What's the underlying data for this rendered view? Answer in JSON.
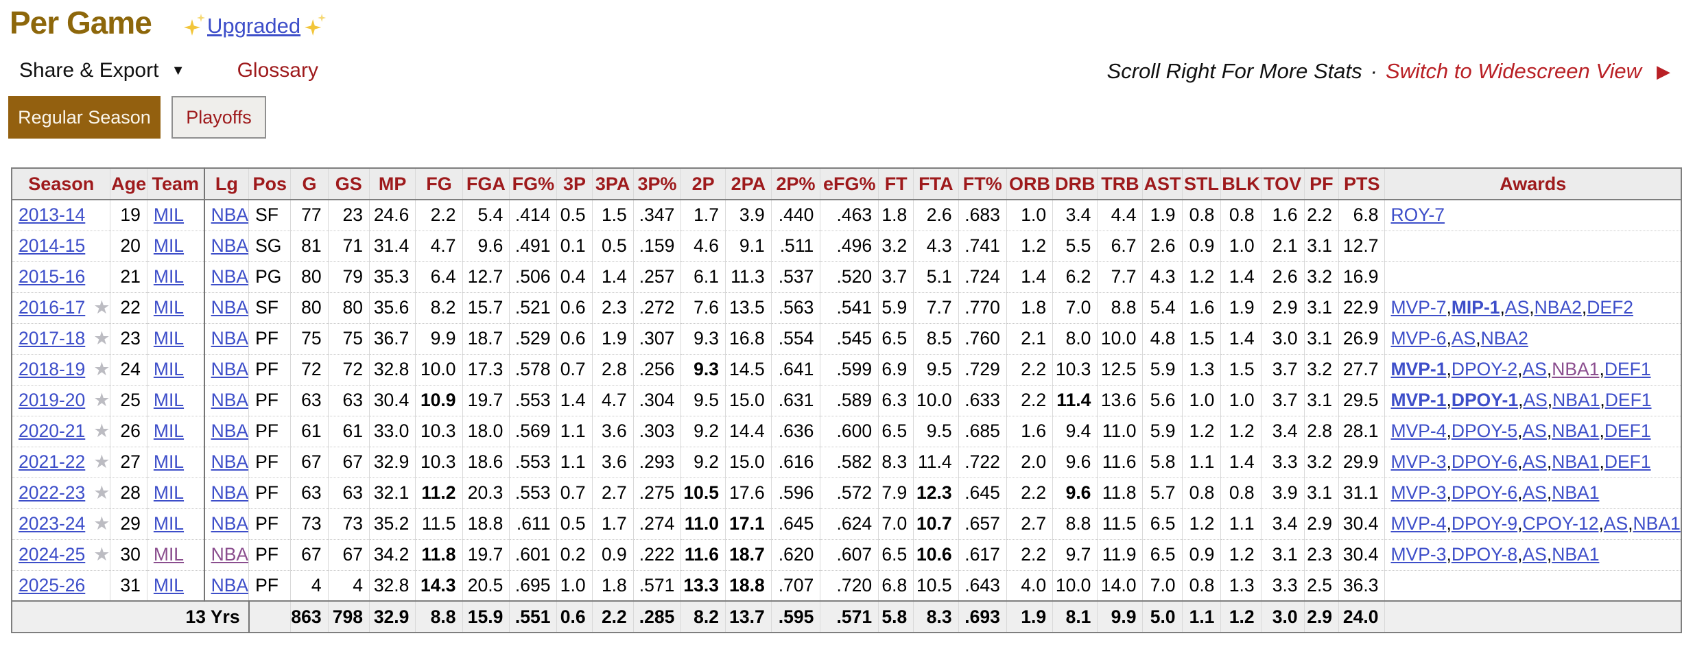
{
  "header": {
    "title": "Per Game",
    "upgraded_label": "Upgraded",
    "share_export_label": "Share & Export",
    "share_export_caret": "▼",
    "glossary_label": "Glossary",
    "scroll_note": "Scroll Right For More Stats",
    "dot": "·",
    "widescreen_label": "Switch to Widescreen View",
    "widescreen_arrow": "▶"
  },
  "tabs": [
    {
      "label": "Regular Season",
      "active": true
    },
    {
      "label": "Playoffs",
      "active": false
    }
  ],
  "colors": {
    "title_gold": "#8d670b",
    "active_tab_brown": "#93600f",
    "header_maroon": "#9e1a1c",
    "accent_red": "#b92025",
    "link_blue": "#3d4ec9",
    "visited_purple": "#8a4d8e",
    "star_gray": "#bcbcc2"
  },
  "table": {
    "columns": [
      "Season",
      "Age",
      "Team",
      "Lg",
      "Pos",
      "G",
      "GS",
      "MP",
      "FG",
      "FGA",
      "FG%",
      "3P",
      "3PA",
      "3P%",
      "2P",
      "2PA",
      "2P%",
      "eFG%",
      "FT",
      "FTA",
      "FT%",
      "ORB",
      "DRB",
      "TRB",
      "AST",
      "STL",
      "BLK",
      "TOV",
      "PF",
      "PTS",
      "Awards"
    ],
    "star_icon": "★",
    "rows": [
      {
        "season": "2013-14",
        "star": false,
        "age": "19",
        "team": "MIL",
        "lg": "NBA",
        "pos": "SF",
        "stats": [
          "77",
          "23",
          "24.6",
          "2.2",
          "5.4",
          ".414",
          "0.5",
          "1.5",
          ".347",
          "1.7",
          "3.9",
          ".440",
          ".463",
          "1.8",
          "2.6",
          ".683",
          "1.0",
          "3.4",
          "4.4",
          "1.9",
          "0.8",
          "0.8",
          "1.6",
          "2.2",
          "6.8"
        ],
        "bold_stats": [],
        "team_visited": false,
        "lg_visited": false,
        "awards": [
          {
            "t": "ROY-7",
            "b": false,
            "v": false
          }
        ]
      },
      {
        "season": "2014-15",
        "star": false,
        "age": "20",
        "team": "MIL",
        "lg": "NBA",
        "pos": "SG",
        "stats": [
          "81",
          "71",
          "31.4",
          "4.7",
          "9.6",
          ".491",
          "0.1",
          "0.5",
          ".159",
          "4.6",
          "9.1",
          ".511",
          ".496",
          "3.2",
          "4.3",
          ".741",
          "1.2",
          "5.5",
          "6.7",
          "2.6",
          "0.9",
          "1.0",
          "2.1",
          "3.1",
          "12.7"
        ],
        "bold_stats": [],
        "team_visited": false,
        "lg_visited": false,
        "awards": []
      },
      {
        "season": "2015-16",
        "star": false,
        "age": "21",
        "team": "MIL",
        "lg": "NBA",
        "pos": "PG",
        "stats": [
          "80",
          "79",
          "35.3",
          "6.4",
          "12.7",
          ".506",
          "0.4",
          "1.4",
          ".257",
          "6.1",
          "11.3",
          ".537",
          ".520",
          "3.7",
          "5.1",
          ".724",
          "1.4",
          "6.2",
          "7.7",
          "4.3",
          "1.2",
          "1.4",
          "2.6",
          "3.2",
          "16.9"
        ],
        "bold_stats": [],
        "team_visited": false,
        "lg_visited": false,
        "awards": []
      },
      {
        "season": "2016-17",
        "star": true,
        "age": "22",
        "team": "MIL",
        "lg": "NBA",
        "pos": "SF",
        "stats": [
          "80",
          "80",
          "35.6",
          "8.2",
          "15.7",
          ".521",
          "0.6",
          "2.3",
          ".272",
          "7.6",
          "13.5",
          ".563",
          ".541",
          "5.9",
          "7.7",
          ".770",
          "1.8",
          "7.0",
          "8.8",
          "5.4",
          "1.6",
          "1.9",
          "2.9",
          "3.1",
          "22.9"
        ],
        "bold_stats": [],
        "team_visited": false,
        "lg_visited": false,
        "awards": [
          {
            "t": "MVP-7",
            "b": false,
            "v": false
          },
          {
            "t": "MIP-1",
            "b": true,
            "v": false
          },
          {
            "t": "AS",
            "b": false,
            "v": false
          },
          {
            "t": "NBA2",
            "b": false,
            "v": false
          },
          {
            "t": "DEF2",
            "b": false,
            "v": false
          }
        ]
      },
      {
        "season": "2017-18",
        "star": true,
        "age": "23",
        "team": "MIL",
        "lg": "NBA",
        "pos": "PF",
        "stats": [
          "75",
          "75",
          "36.7",
          "9.9",
          "18.7",
          ".529",
          "0.6",
          "1.9",
          ".307",
          "9.3",
          "16.8",
          ".554",
          ".545",
          "6.5",
          "8.5",
          ".760",
          "2.1",
          "8.0",
          "10.0",
          "4.8",
          "1.5",
          "1.4",
          "3.0",
          "3.1",
          "26.9"
        ],
        "bold_stats": [],
        "team_visited": false,
        "lg_visited": false,
        "awards": [
          {
            "t": "MVP-6",
            "b": false,
            "v": false
          },
          {
            "t": "AS",
            "b": false,
            "v": false
          },
          {
            "t": "NBA2",
            "b": false,
            "v": false
          }
        ]
      },
      {
        "season": "2018-19",
        "star": true,
        "age": "24",
        "team": "MIL",
        "lg": "NBA",
        "pos": "PF",
        "stats": [
          "72",
          "72",
          "32.8",
          "10.0",
          "17.3",
          ".578",
          "0.7",
          "2.8",
          ".256",
          "9.3",
          "14.5",
          ".641",
          ".599",
          "6.9",
          "9.5",
          ".729",
          "2.2",
          "10.3",
          "12.5",
          "5.9",
          "1.3",
          "1.5",
          "3.7",
          "3.2",
          "27.7"
        ],
        "bold_stats": [
          9
        ],
        "team_visited": false,
        "lg_visited": false,
        "awards": [
          {
            "t": "MVP-1",
            "b": true,
            "v": false
          },
          {
            "t": "DPOY-2",
            "b": false,
            "v": false
          },
          {
            "t": "AS",
            "b": false,
            "v": false
          },
          {
            "t": "NBA1",
            "b": false,
            "v": true
          },
          {
            "t": "DEF1",
            "b": false,
            "v": false
          }
        ]
      },
      {
        "season": "2019-20",
        "star": true,
        "age": "25",
        "team": "MIL",
        "lg": "NBA",
        "pos": "PF",
        "stats": [
          "63",
          "63",
          "30.4",
          "10.9",
          "19.7",
          ".553",
          "1.4",
          "4.7",
          ".304",
          "9.5",
          "15.0",
          ".631",
          ".589",
          "6.3",
          "10.0",
          ".633",
          "2.2",
          "11.4",
          "13.6",
          "5.6",
          "1.0",
          "1.0",
          "3.7",
          "3.1",
          "29.5"
        ],
        "bold_stats": [
          3,
          17
        ],
        "team_visited": false,
        "lg_visited": false,
        "awards": [
          {
            "t": "MVP-1",
            "b": true,
            "v": false
          },
          {
            "t": "DPOY-1",
            "b": true,
            "v": false
          },
          {
            "t": "AS",
            "b": false,
            "v": false
          },
          {
            "t": "NBA1",
            "b": false,
            "v": false
          },
          {
            "t": "DEF1",
            "b": false,
            "v": false
          }
        ]
      },
      {
        "season": "2020-21",
        "star": true,
        "age": "26",
        "team": "MIL",
        "lg": "NBA",
        "pos": "PF",
        "stats": [
          "61",
          "61",
          "33.0",
          "10.3",
          "18.0",
          ".569",
          "1.1",
          "3.6",
          ".303",
          "9.2",
          "14.4",
          ".636",
          ".600",
          "6.5",
          "9.5",
          ".685",
          "1.6",
          "9.4",
          "11.0",
          "5.9",
          "1.2",
          "1.2",
          "3.4",
          "2.8",
          "28.1"
        ],
        "bold_stats": [],
        "team_visited": false,
        "lg_visited": false,
        "awards": [
          {
            "t": "MVP-4",
            "b": false,
            "v": false
          },
          {
            "t": "DPOY-5",
            "b": false,
            "v": false
          },
          {
            "t": "AS",
            "b": false,
            "v": false
          },
          {
            "t": "NBA1",
            "b": false,
            "v": false
          },
          {
            "t": "DEF1",
            "b": false,
            "v": false
          }
        ]
      },
      {
        "season": "2021-22",
        "star": true,
        "age": "27",
        "team": "MIL",
        "lg": "NBA",
        "pos": "PF",
        "stats": [
          "67",
          "67",
          "32.9",
          "10.3",
          "18.6",
          ".553",
          "1.1",
          "3.6",
          ".293",
          "9.2",
          "15.0",
          ".616",
          ".582",
          "8.3",
          "11.4",
          ".722",
          "2.0",
          "9.6",
          "11.6",
          "5.8",
          "1.1",
          "1.4",
          "3.3",
          "3.2",
          "29.9"
        ],
        "bold_stats": [],
        "team_visited": false,
        "lg_visited": false,
        "awards": [
          {
            "t": "MVP-3",
            "b": false,
            "v": false
          },
          {
            "t": "DPOY-6",
            "b": false,
            "v": false
          },
          {
            "t": "AS",
            "b": false,
            "v": false
          },
          {
            "t": "NBA1",
            "b": false,
            "v": false
          },
          {
            "t": "DEF1",
            "b": false,
            "v": false
          }
        ]
      },
      {
        "season": "2022-23",
        "star": true,
        "age": "28",
        "team": "MIL",
        "lg": "NBA",
        "pos": "PF",
        "stats": [
          "63",
          "63",
          "32.1",
          "11.2",
          "20.3",
          ".553",
          "0.7",
          "2.7",
          ".275",
          "10.5",
          "17.6",
          ".596",
          ".572",
          "7.9",
          "12.3",
          ".645",
          "2.2",
          "9.6",
          "11.8",
          "5.7",
          "0.8",
          "0.8",
          "3.9",
          "3.1",
          "31.1"
        ],
        "bold_stats": [
          3,
          9,
          14,
          17
        ],
        "team_visited": false,
        "lg_visited": false,
        "awards": [
          {
            "t": "MVP-3",
            "b": false,
            "v": false
          },
          {
            "t": "DPOY-6",
            "b": false,
            "v": false
          },
          {
            "t": "AS",
            "b": false,
            "v": false
          },
          {
            "t": "NBA1",
            "b": false,
            "v": false
          }
        ]
      },
      {
        "season": "2023-24",
        "star": true,
        "age": "29",
        "team": "MIL",
        "lg": "NBA",
        "pos": "PF",
        "stats": [
          "73",
          "73",
          "35.2",
          "11.5",
          "18.8",
          ".611",
          "0.5",
          "1.7",
          ".274",
          "11.0",
          "17.1",
          ".645",
          ".624",
          "7.0",
          "10.7",
          ".657",
          "2.7",
          "8.8",
          "11.5",
          "6.5",
          "1.2",
          "1.1",
          "3.4",
          "2.9",
          "30.4"
        ],
        "bold_stats": [
          9,
          10,
          14
        ],
        "team_visited": false,
        "lg_visited": false,
        "awards": [
          {
            "t": "MVP-4",
            "b": false,
            "v": false
          },
          {
            "t": "DPOY-9",
            "b": false,
            "v": false
          },
          {
            "t": "CPOY-12",
            "b": false,
            "v": false
          },
          {
            "t": "AS",
            "b": false,
            "v": false
          },
          {
            "t": "NBA1",
            "b": false,
            "v": false
          }
        ]
      },
      {
        "season": "2024-25",
        "star": true,
        "age": "30",
        "team": "MIL",
        "lg": "NBA",
        "pos": "PF",
        "stats": [
          "67",
          "67",
          "34.2",
          "11.8",
          "19.7",
          ".601",
          "0.2",
          "0.9",
          ".222",
          "11.6",
          "18.7",
          ".620",
          ".607",
          "6.5",
          "10.6",
          ".617",
          "2.2",
          "9.7",
          "11.9",
          "6.5",
          "0.9",
          "1.2",
          "3.1",
          "2.3",
          "30.4"
        ],
        "bold_stats": [
          3,
          9,
          10,
          14
        ],
        "team_visited": true,
        "lg_visited": true,
        "awards": [
          {
            "t": "MVP-3",
            "b": false,
            "v": false
          },
          {
            "t": "DPOY-8",
            "b": false,
            "v": false
          },
          {
            "t": "AS",
            "b": false,
            "v": false
          },
          {
            "t": "NBA1",
            "b": false,
            "v": false
          }
        ]
      },
      {
        "season": "2025-26",
        "star": false,
        "age": "31",
        "team": "MIL",
        "lg": "NBA",
        "pos": "PF",
        "stats": [
          "4",
          "4",
          "32.8",
          "14.3",
          "20.5",
          ".695",
          "1.0",
          "1.8",
          ".571",
          "13.3",
          "18.8",
          ".707",
          ".720",
          "6.8",
          "10.5",
          ".643",
          "4.0",
          "10.0",
          "14.0",
          "7.0",
          "0.8",
          "1.3",
          "3.3",
          "2.5",
          "36.3"
        ],
        "bold_stats": [
          3,
          9,
          10
        ],
        "team_visited": false,
        "lg_visited": false,
        "awards": []
      }
    ],
    "footer": {
      "label": "13 Yrs",
      "stats": [
        "863",
        "798",
        "32.9",
        "8.8",
        "15.9",
        ".551",
        "0.6",
        "2.2",
        ".285",
        "8.2",
        "13.7",
        ".595",
        ".571",
        "5.8",
        "8.3",
        ".693",
        "1.9",
        "8.1",
        "9.9",
        "5.0",
        "1.1",
        "1.2",
        "3.0",
        "2.9",
        "24.0"
      ]
    }
  }
}
